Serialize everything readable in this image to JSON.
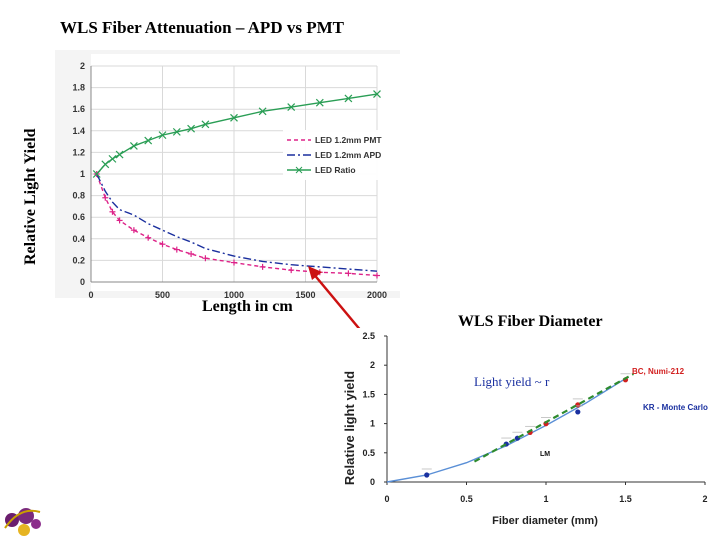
{
  "slide": {
    "title": "WLS Fiber Attenuation – APD vs PMT",
    "left_ylabel": "Relative Light Yield",
    "left_xlabel": "Length in cm",
    "right_title": "WLS Fiber Diameter"
  },
  "chart_data": [
    {
      "type": "line",
      "title": "",
      "xlabel": "Length in cm",
      "ylabel": "Relative Light Yield",
      "xlim": [
        0,
        2000
      ],
      "ylim": [
        0,
        2
      ],
      "xticks": [
        0,
        500,
        1000,
        1500,
        2000
      ],
      "yticks": [
        0,
        0.2,
        0.4,
        0.6,
        0.8,
        1,
        1.2,
        1.4,
        1.6,
        1.8,
        2
      ],
      "grid": true,
      "legend_position": "right",
      "x": [
        40,
        100,
        150,
        200,
        300,
        400,
        500,
        600,
        700,
        800,
        1000,
        1200,
        1400,
        1600,
        1800,
        2000
      ],
      "series": [
        {
          "name": "LED 1.2mm PMT",
          "color": "#dd2288",
          "style": "dashed-plus",
          "values": [
            1.0,
            0.78,
            0.65,
            0.57,
            0.48,
            0.41,
            0.35,
            0.3,
            0.26,
            0.22,
            0.18,
            0.14,
            0.11,
            0.09,
            0.08,
            0.06
          ]
        },
        {
          "name": "LED 1.2mm APD",
          "color": "#1a2f9e",
          "style": "dashdot",
          "values": [
            1.0,
            0.84,
            0.74,
            0.67,
            0.62,
            0.54,
            0.48,
            0.42,
            0.37,
            0.31,
            0.24,
            0.19,
            0.16,
            0.14,
            0.12,
            0.1
          ]
        },
        {
          "name": "LED Ratio",
          "color": "#2a9e55",
          "style": "solid-x",
          "values": [
            1.0,
            1.09,
            1.14,
            1.18,
            1.26,
            1.31,
            1.36,
            1.39,
            1.42,
            1.46,
            1.52,
            1.58,
            1.62,
            1.66,
            1.7,
            1.74
          ]
        }
      ],
      "annotation": "red arrow pointing to the curves near 1500 cm"
    },
    {
      "type": "scatter",
      "title": "WLS Fiber Diameter",
      "xlabel": "Fiber diameter (mm)",
      "ylabel": "Relative light yield",
      "xlim": [
        0,
        2
      ],
      "ylim": [
        0,
        2.5
      ],
      "xticks": [
        0,
        0.5,
        1,
        1.5,
        2
      ],
      "yticks": [
        0,
        0.5,
        1,
        1.5,
        2,
        2.5
      ],
      "annotation_text": "Light yield ~ r",
      "labels": [
        {
          "text": "BC, Numi-212",
          "color": "#d22020"
        },
        {
          "text": "KR - Monte Carlo",
          "color": "#1a30a0"
        },
        {
          "text": "LM",
          "color": "#111111"
        }
      ],
      "curve": {
        "name": "model",
        "x": [
          0,
          0.25,
          0.5,
          0.75,
          1.0,
          1.25,
          1.5
        ],
        "values": [
          0,
          0.12,
          0.33,
          0.62,
          0.97,
          1.35,
          1.77
        ]
      },
      "series": [
        {
          "name": "BC, Numi-212",
          "color": "#d22020",
          "x": [
            0.9,
            1.0,
            1.2,
            1.5
          ],
          "values": [
            0.85,
            1.0,
            1.32,
            1.75
          ]
        },
        {
          "name": "KR - Monte Carlo",
          "color": "#1a30a0",
          "x": [
            0.25,
            0.75,
            0.82,
            1.2
          ],
          "values": [
            0.12,
            0.65,
            0.75,
            1.2
          ]
        },
        {
          "name": "fit",
          "color": "#2e8b2e",
          "style": "dashed",
          "x": [
            0.55,
            1.55
          ],
          "values": [
            0.35,
            1.85
          ]
        }
      ]
    }
  ],
  "colors": {
    "arrow": "#cc1111",
    "grid": "#d9d9d9",
    "plot_bg": "#ffffff"
  },
  "icons": {
    "logo": "university-logo"
  }
}
